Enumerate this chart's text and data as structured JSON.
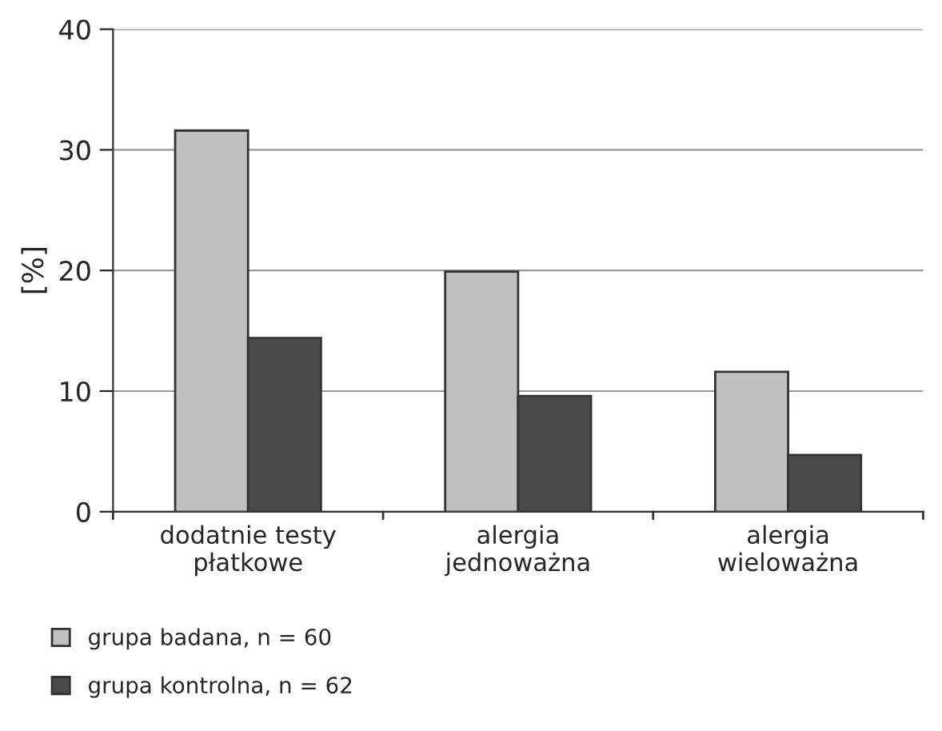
{
  "chart_data": {
    "type": "bar",
    "ylabel": "[%]",
    "categories": [
      "dodatnie testy\npłatkowe",
      "alergia\njednoważna",
      "alergia\nwieloważna"
    ],
    "series": [
      {
        "name": "grupa badana, n = 60",
        "color": "#c0c0c0",
        "values": [
          31.6,
          19.9,
          11.6
        ]
      },
      {
        "name": "grupa kontrolna, n = 62",
        "color": "#4a4a4a",
        "values": [
          14.4,
          9.6,
          4.7
        ]
      }
    ],
    "ylim": [
      0,
      40
    ],
    "yticks": [
      0,
      10,
      20,
      30,
      40
    ],
    "grid": "y",
    "legend": "bottom"
  }
}
